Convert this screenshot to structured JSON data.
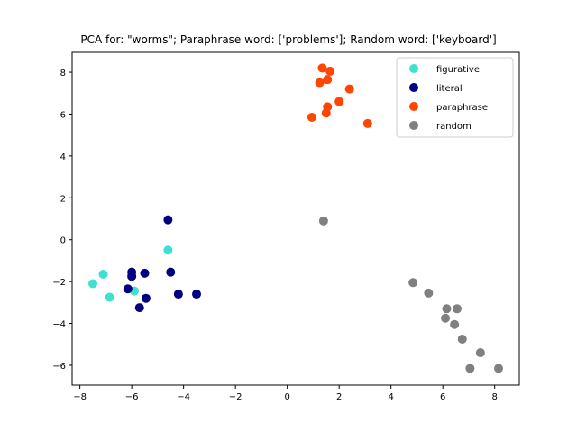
{
  "chart_data": {
    "type": "scatter",
    "title": "PCA for: \"worms\"; Paraphrase word: ['problems']; Random word: ['keyboard']",
    "xlabel": "",
    "ylabel": "",
    "xlim": [
      -8.3,
      8.95
    ],
    "ylim": [
      -6.95,
      8.95
    ],
    "xticks": [
      -8,
      -6,
      -4,
      -2,
      0,
      2,
      4,
      6,
      8
    ],
    "yticks": [
      -6,
      -4,
      -2,
      0,
      2,
      4,
      6,
      8
    ],
    "grid": false,
    "legend_position": "top-right",
    "series": [
      {
        "name": "figurative",
        "color": "#40e0d0",
        "points": [
          [
            -7.5,
            -2.1
          ],
          [
            -7.1,
            -1.65
          ],
          [
            -6.85,
            -2.75
          ],
          [
            -5.9,
            -2.45
          ],
          [
            -4.6,
            -0.5
          ]
        ]
      },
      {
        "name": "literal",
        "color": "#000080",
        "points": [
          [
            -4.6,
            0.95
          ],
          [
            -6.0,
            -1.55
          ],
          [
            -6.0,
            -1.75
          ],
          [
            -5.5,
            -1.6
          ],
          [
            -4.5,
            -1.55
          ],
          [
            -6.15,
            -2.35
          ],
          [
            -5.45,
            -2.8
          ],
          [
            -5.7,
            -3.25
          ],
          [
            -4.2,
            -2.6
          ],
          [
            -3.5,
            -2.6
          ]
        ]
      },
      {
        "name": "paraphrase",
        "color": "#ff4500",
        "points": [
          [
            1.35,
            8.2
          ],
          [
            1.65,
            8.05
          ],
          [
            1.25,
            7.5
          ],
          [
            1.55,
            7.65
          ],
          [
            2.4,
            7.2
          ],
          [
            2.0,
            6.6
          ],
          [
            1.55,
            6.35
          ],
          [
            1.5,
            6.05
          ],
          [
            0.95,
            5.85
          ],
          [
            3.1,
            5.55
          ]
        ]
      },
      {
        "name": "random",
        "color": "#808080",
        "points": [
          [
            1.4,
            0.9
          ],
          [
            4.85,
            -2.05
          ],
          [
            5.45,
            -2.55
          ],
          [
            6.15,
            -3.3
          ],
          [
            6.55,
            -3.3
          ],
          [
            6.1,
            -3.75
          ],
          [
            6.45,
            -4.05
          ],
          [
            6.75,
            -4.75
          ],
          [
            7.45,
            -5.4
          ],
          [
            7.05,
            -6.15
          ],
          [
            8.15,
            -6.15
          ]
        ]
      }
    ]
  }
}
